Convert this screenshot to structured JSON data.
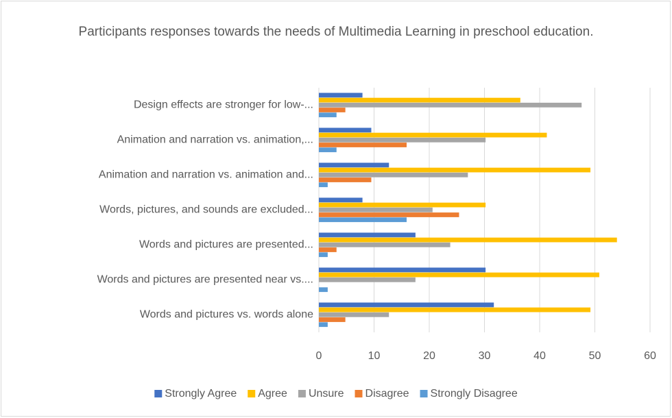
{
  "chart_data": {
    "type": "bar",
    "orientation": "horizontal",
    "title": "Participants responses towards the needs of Multimedia Learning in preschool education.",
    "categories": [
      "Design effects are stronger for low-...",
      "Animation and narration vs. animation,...",
      "Animation and narration vs. animation and...",
      "Words, pictures, and sounds are excluded...",
      "Words and pictures are presented...",
      "Words and pictures are presented near vs....",
      "Words and pictures vs. words alone"
    ],
    "series": [
      {
        "name": "Strongly Agree",
        "color": "#4472c4",
        "values": [
          7.9,
          9.5,
          12.7,
          7.9,
          17.5,
          30.2,
          31.7
        ]
      },
      {
        "name": "Agree",
        "color": "#ffc000",
        "values": [
          36.5,
          41.3,
          49.2,
          30.2,
          54,
          50.8,
          49.2
        ]
      },
      {
        "name": "Unsure",
        "color": "#a5a5a5",
        "values": [
          47.6,
          30.2,
          27,
          20.6,
          23.8,
          17.5,
          12.7
        ]
      },
      {
        "name": "Disagree",
        "color": "#ed7d31",
        "values": [
          4.8,
          15.9,
          9.5,
          25.4,
          3.2,
          0,
          4.8
        ]
      },
      {
        "name": "Strongly Disagree",
        "color": "#5b9bd5",
        "values": [
          3.2,
          3.2,
          1.6,
          15.9,
          1.6,
          1.6,
          1.6
        ]
      }
    ],
    "xlim": [
      0,
      60
    ],
    "xticks": [
      0,
      10,
      20,
      30,
      40,
      50,
      60
    ],
    "grid": true,
    "legend": "bottom"
  }
}
